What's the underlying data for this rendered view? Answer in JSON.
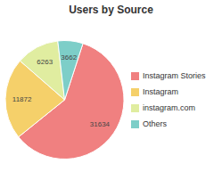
{
  "chart_data": {
    "type": "pie",
    "title": "Users by Source",
    "categories": [
      "Instagram Stories",
      "Instagram",
      "instagram.com",
      "Others"
    ],
    "values": [
      31634,
      11872,
      6263,
      3662
    ],
    "colors": [
      "#F08080",
      "#F5D06A",
      "#E0EDA0",
      "#7DCEC8"
    ],
    "data_labels": true,
    "legend": "right"
  }
}
